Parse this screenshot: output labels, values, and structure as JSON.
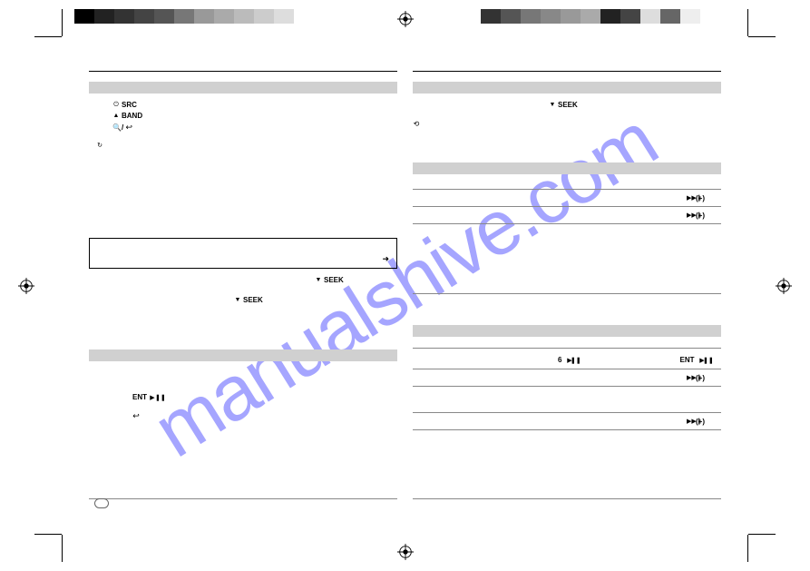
{
  "watermark": "manualshive.com",
  "grayscale": [
    "#000000",
    "#222222",
    "#333333",
    "#444444",
    "#555555",
    "#777777",
    "#999999",
    "#aaaaaa",
    "#bbbbbb",
    "#cccccc",
    "#dddddd"
  ],
  "grayscale_right": [
    "#333333",
    "#555555",
    "#777777",
    "#888888",
    "#999999",
    "#aaaaaa",
    "#222222",
    "#444444",
    "#dddddd",
    "#666666",
    "#eeeeee"
  ],
  "left_col": {
    "items": [
      {
        "icon": "⏻",
        "label": "SRC"
      },
      {
        "icon": "▲",
        "label": "BAND"
      },
      {
        "icon": "🔍",
        "label": "/",
        "icon2": "↩"
      }
    ],
    "seek": "SEEK",
    "ent": "ENT"
  },
  "right_col": {
    "seek": "SEEK",
    "plus_label": "(+)",
    "six": "6",
    "ent": "ENT"
  }
}
